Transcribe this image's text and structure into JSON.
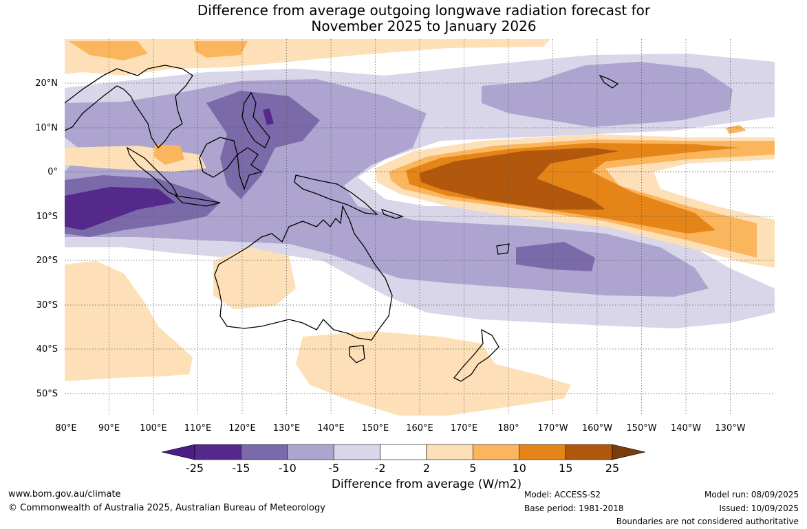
{
  "title_line1": "Difference from average outgoing longwave radiation forecast for",
  "title_line2": "November 2025 to January 2026",
  "lat_labels": [
    "20°N",
    "10°N",
    "0°",
    "10°S",
    "20°S",
    "30°S",
    "40°S",
    "50°S"
  ],
  "lon_labels": [
    "80°E",
    "90°E",
    "100°E",
    "110°E",
    "120°E",
    "130°E",
    "140°E",
    "150°E",
    "160°E",
    "170°E",
    "180°",
    "170°W",
    "160°W",
    "150°W",
    "140°W",
    "130°W"
  ],
  "colorbar": {
    "ticks": [
      "-25",
      "-15",
      "-10",
      "-5",
      "-2",
      "2",
      "5",
      "10",
      "15",
      "25"
    ],
    "colors": [
      "#4a1e84",
      "#55288c",
      "#7b6aa9",
      "#ada5cf",
      "#d8d6e8",
      "#ffffff",
      "#fde0b8",
      "#fbb55c",
      "#e58417",
      "#b1580c",
      "#7b3c0c"
    ],
    "title": "Difference from average (W/m2)"
  },
  "footer": {
    "website": "www.bom.gov.au/climate",
    "copyright": "© Commonwealth of Australia 2025, Australian Bureau of Meteorology",
    "model": "Model: ACCESS-S2",
    "base_period": "Base period: 1981-2018",
    "model_run": "Model run: 08/09/2025",
    "issued": "Issued: 10/09/2025",
    "disclaimer": "Boundaries are not considered authoritative"
  }
}
